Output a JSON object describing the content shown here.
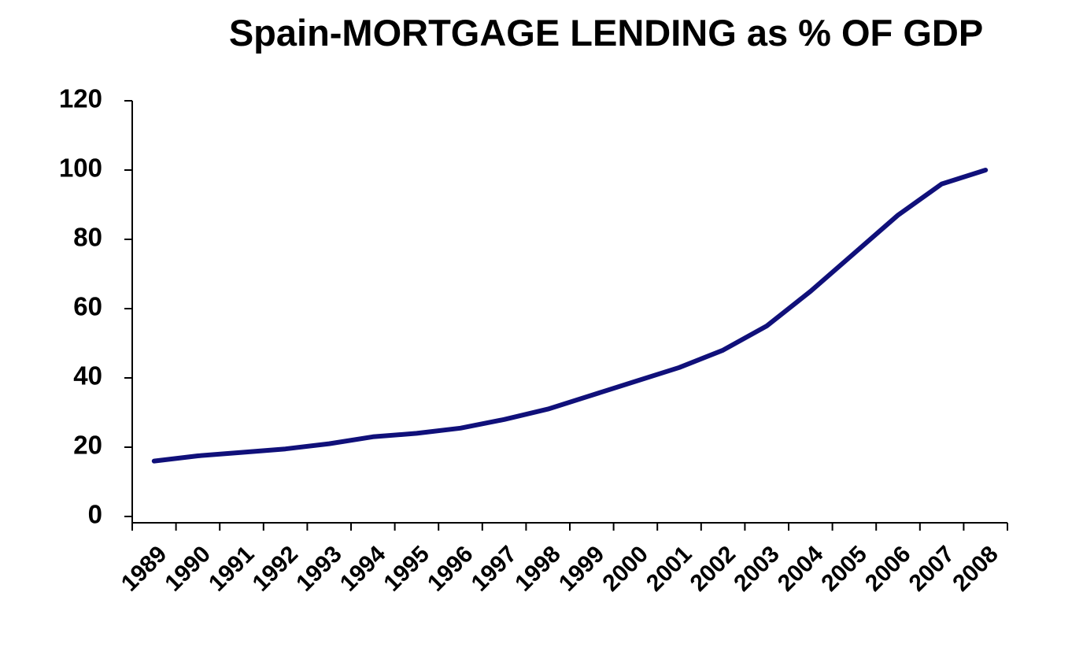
{
  "chart_data": {
    "type": "line",
    "title": "Spain-MORTGAGE LENDING as % OF GDP",
    "categories": [
      "1989",
      "1990",
      "1991",
      "1992",
      "1993",
      "1994",
      "1995",
      "1996",
      "1997",
      "1998",
      "1999",
      "2000",
      "2001",
      "2002",
      "2003",
      "2004",
      "2005",
      "2006",
      "2007",
      "2008"
    ],
    "series": [
      {
        "name": "Mortgage lending",
        "color": "#10107a",
        "values": [
          16,
          17.5,
          18.5,
          19.5,
          21,
          23,
          24,
          25.5,
          28,
          31,
          35,
          39,
          43,
          48,
          55,
          65,
          76,
          87,
          96,
          100
        ]
      }
    ],
    "ylim": [
      0,
      120
    ],
    "yticks": [
      0,
      20,
      40,
      60,
      80,
      100,
      120
    ],
    "grid": false,
    "legend": false
  }
}
